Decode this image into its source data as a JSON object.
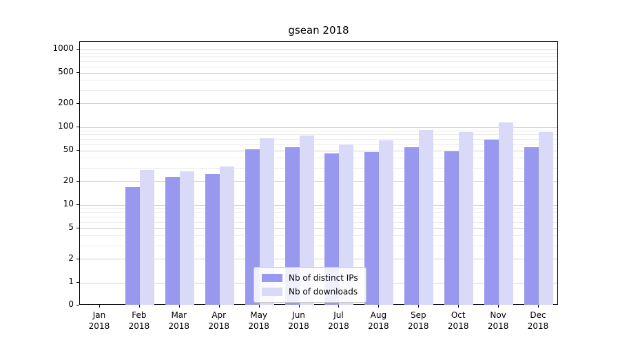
{
  "chart_data": {
    "type": "bar",
    "title": "gsean 2018",
    "categories": [
      "Jan",
      "Feb",
      "Mar",
      "Apr",
      "May",
      "Jun",
      "Jul",
      "Aug",
      "Sep",
      "Oct",
      "Nov",
      "Dec"
    ],
    "category_year": "2018",
    "series": [
      {
        "name": "Nb of distinct IPs",
        "color": "#9898ee",
        "values": [
          0,
          17,
          23,
          25,
          52,
          55,
          46,
          48,
          55,
          49,
          70,
          55
        ]
      },
      {
        "name": "Nb of downloads",
        "color": "#d9d9f8",
        "values": [
          0,
          28,
          27,
          31,
          72,
          79,
          60,
          68,
          92,
          86,
          115,
          86
        ]
      }
    ],
    "yscale": "symlog",
    "yticks": [
      0,
      1,
      2,
      5,
      10,
      20,
      50,
      100,
      200,
      500,
      1000
    ],
    "ylim": [
      0,
      1250
    ],
    "grid": "both",
    "legend_position": "lower center"
  },
  "colors": {
    "major_grid": "#cfcfcf",
    "minor_grid": "#ebebeb",
    "spine": "#000000",
    "background": "#ffffff"
  }
}
